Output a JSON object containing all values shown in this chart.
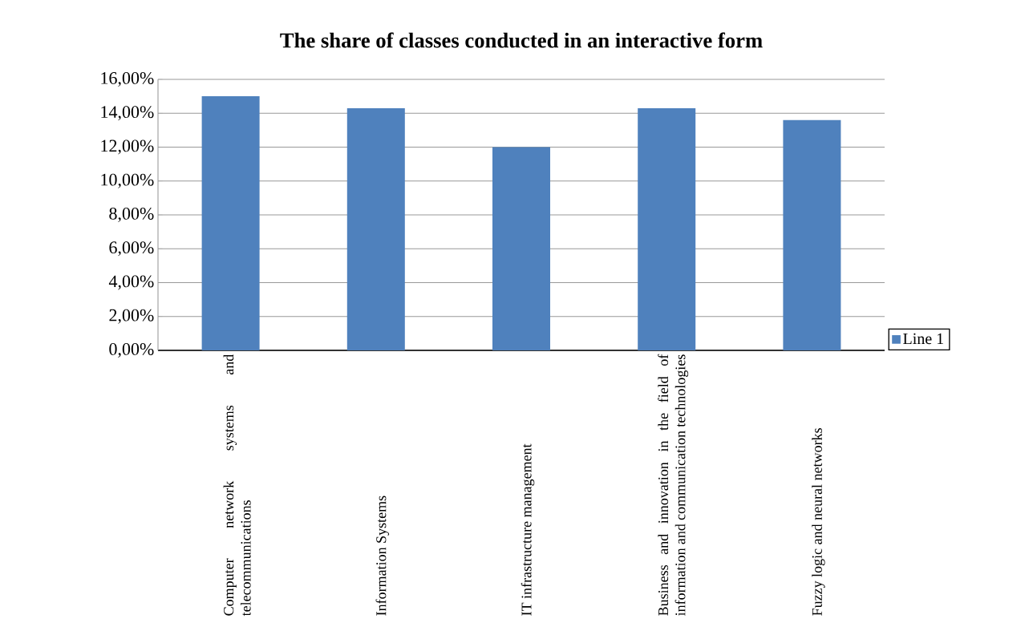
{
  "chart_data": {
    "type": "bar",
    "title": "The share of classes conducted in an interactive form",
    "categories": [
      "Computer network systems and telecommunications",
      "Information Systems",
      "IT infrastructure management",
      "Business and innovation in the field of information and communication technologies",
      "Fuzzy logic and neural networks"
    ],
    "series": [
      {
        "name": "Line 1",
        "color": "#4f81bd",
        "values": [
          15.0,
          14.3,
          12.0,
          14.3,
          13.6
        ]
      }
    ],
    "ylim": [
      0,
      16
    ],
    "yticks": [
      {
        "value": 0,
        "label": "0,00%"
      },
      {
        "value": 2,
        "label": "2,00%"
      },
      {
        "value": 4,
        "label": "4,00%"
      },
      {
        "value": 6,
        "label": "6,00%"
      },
      {
        "value": 8,
        "label": "8,00%"
      },
      {
        "value": 10,
        "label": "10,00%"
      },
      {
        "value": 12,
        "label": "12,00%"
      },
      {
        "value": 14,
        "label": "14,00%"
      },
      {
        "value": 16,
        "label": "16,00%"
      }
    ],
    "grid": "y",
    "legend": "right"
  }
}
